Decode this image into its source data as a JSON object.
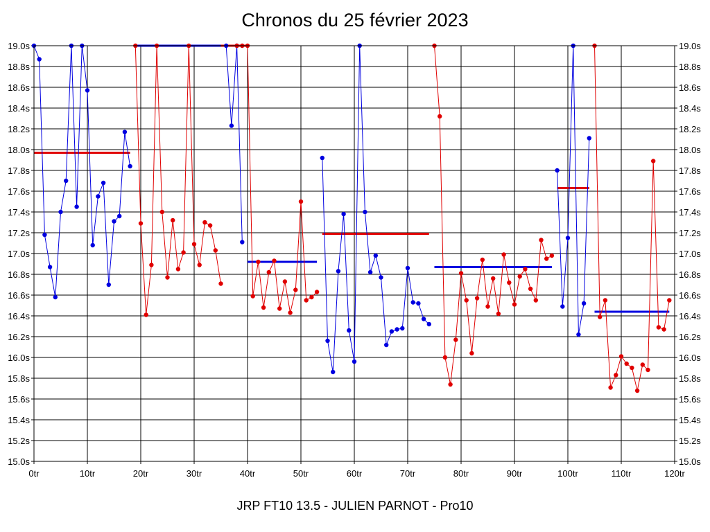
{
  "chart_data": {
    "type": "line",
    "title": "Chronos du 25 février 2023",
    "footer": "JRP FT10 13.5 - JULIEN PARNOT - Pro10",
    "xlim": [
      0,
      120
    ],
    "ylim": [
      15.0,
      19.0
    ],
    "grid": true,
    "x_ticks": [
      {
        "value": 0,
        "label": "0tr"
      },
      {
        "value": 10,
        "label": "10tr"
      },
      {
        "value": 20,
        "label": "20tr"
      },
      {
        "value": 30,
        "label": "30tr"
      },
      {
        "value": 40,
        "label": "40tr"
      },
      {
        "value": 50,
        "label": "50tr"
      },
      {
        "value": 60,
        "label": "60tr"
      },
      {
        "value": 70,
        "label": "70tr"
      },
      {
        "value": 80,
        "label": "80tr"
      },
      {
        "value": 90,
        "label": "90tr"
      },
      {
        "value": 100,
        "label": "100tr"
      },
      {
        "value": 110,
        "label": "110tr"
      },
      {
        "value": 120,
        "label": "120tr"
      }
    ],
    "y_ticks": [
      {
        "value": 19.0,
        "label": "19.0s"
      },
      {
        "value": 18.8,
        "label": "18.8s"
      },
      {
        "value": 18.6,
        "label": "18.6s"
      },
      {
        "value": 18.4,
        "label": "18.4s"
      },
      {
        "value": 18.2,
        "label": "18.2s"
      },
      {
        "value": 18.0,
        "label": "18.0s"
      },
      {
        "value": 17.8,
        "label": "17.8s"
      },
      {
        "value": 17.6,
        "label": "17.6s"
      },
      {
        "value": 17.4,
        "label": "17.4s"
      },
      {
        "value": 17.2,
        "label": "17.2s"
      },
      {
        "value": 17.0,
        "label": "17.0s"
      },
      {
        "value": 16.8,
        "label": "16.8s"
      },
      {
        "value": 16.6,
        "label": "16.6s"
      },
      {
        "value": 16.4,
        "label": "16.4s"
      },
      {
        "value": 16.2,
        "label": "16.2s"
      },
      {
        "value": 16.0,
        "label": "16.0s"
      },
      {
        "value": 15.8,
        "label": "15.8s"
      },
      {
        "value": 15.6,
        "label": "15.6s"
      },
      {
        "value": 15.4,
        "label": "15.4s"
      },
      {
        "value": 15.2,
        "label": "15.2s"
      },
      {
        "value": 15.0,
        "label": "15.0s"
      }
    ],
    "colors": {
      "blue": "#0000e0",
      "red": "#e00000"
    },
    "series": [
      {
        "color": "blue",
        "points": [
          [
            0,
            19.0
          ],
          [
            1,
            18.87
          ],
          [
            2,
            17.18
          ],
          [
            3,
            16.87
          ],
          [
            4,
            16.58
          ],
          [
            5,
            17.4
          ],
          [
            6,
            17.7
          ],
          [
            7,
            19.0
          ],
          [
            8,
            17.45
          ],
          [
            9,
            19.0
          ],
          [
            10,
            18.57
          ],
          [
            11,
            17.08
          ],
          [
            12,
            17.55
          ],
          [
            13,
            17.68
          ],
          [
            14,
            16.7
          ],
          [
            15,
            17.31
          ],
          [
            16,
            17.36
          ],
          [
            17,
            18.17
          ],
          [
            18,
            17.84
          ]
        ]
      },
      {
        "color": "red",
        "points": [
          [
            19,
            19.0
          ],
          [
            20,
            17.29
          ],
          [
            21,
            16.41
          ],
          [
            22,
            16.89
          ],
          [
            23,
            19.0
          ],
          [
            24,
            17.4
          ],
          [
            25,
            16.77
          ],
          [
            26,
            17.32
          ],
          [
            27,
            16.85
          ],
          [
            28,
            17.01
          ],
          [
            29,
            19.0
          ],
          [
            30,
            17.09
          ],
          [
            31,
            16.89
          ],
          [
            32,
            17.3
          ],
          [
            33,
            17.27
          ],
          [
            34,
            17.03
          ],
          [
            35,
            16.71
          ]
        ]
      },
      {
        "color": "blue",
        "points": [
          [
            36,
            19.0
          ],
          [
            37,
            18.23
          ],
          [
            38,
            19.0
          ],
          [
            39,
            17.11
          ]
        ]
      },
      {
        "color": "red",
        "points": [
          [
            38,
            19.0
          ],
          [
            39,
            19.0
          ],
          [
            40,
            19.0
          ],
          [
            41,
            16.59
          ],
          [
            42,
            16.92
          ],
          [
            43,
            16.48
          ],
          [
            44,
            16.82
          ],
          [
            45,
            16.93
          ],
          [
            46,
            16.47
          ],
          [
            47,
            16.73
          ],
          [
            48,
            16.43
          ],
          [
            49,
            16.65
          ],
          [
            50,
            17.5
          ],
          [
            51,
            16.55
          ],
          [
            52,
            16.58
          ],
          [
            53,
            16.63
          ]
        ]
      },
      {
        "color": "blue",
        "points": [
          [
            54,
            17.92
          ],
          [
            55,
            16.16
          ],
          [
            56,
            15.86
          ],
          [
            57,
            16.83
          ],
          [
            58,
            17.38
          ],
          [
            59,
            16.26
          ],
          [
            60,
            15.96
          ],
          [
            61,
            19.0
          ],
          [
            62,
            17.4
          ],
          [
            63,
            16.82
          ],
          [
            64,
            16.98
          ],
          [
            65,
            16.77
          ],
          [
            66,
            16.12
          ],
          [
            67,
            16.25
          ],
          [
            68,
            16.27
          ],
          [
            69,
            16.28
          ],
          [
            70,
            16.86
          ],
          [
            71,
            16.53
          ],
          [
            72,
            16.52
          ],
          [
            73,
            16.37
          ],
          [
            74,
            16.32
          ]
        ]
      },
      {
        "color": "red",
        "points": [
          [
            75,
            19.0
          ],
          [
            76,
            18.32
          ],
          [
            77,
            16.0
          ],
          [
            78,
            15.74
          ],
          [
            79,
            16.17
          ],
          [
            80,
            16.81
          ],
          [
            81,
            16.55
          ],
          [
            82,
            16.04
          ],
          [
            83,
            16.57
          ],
          [
            84,
            16.94
          ],
          [
            85,
            16.49
          ],
          [
            86,
            16.76
          ],
          [
            87,
            16.42
          ],
          [
            88,
            16.99
          ],
          [
            89,
            16.72
          ],
          [
            90,
            16.51
          ],
          [
            91,
            16.78
          ],
          [
            92,
            16.85
          ],
          [
            93,
            16.66
          ],
          [
            94,
            16.55
          ],
          [
            95,
            17.13
          ],
          [
            96,
            16.95
          ],
          [
            97,
            16.98
          ]
        ]
      },
      {
        "color": "blue",
        "points": [
          [
            98,
            17.8
          ],
          [
            99,
            16.49
          ],
          [
            100,
            17.15
          ],
          [
            101,
            19.0
          ],
          [
            102,
            16.22
          ],
          [
            103,
            16.52
          ],
          [
            104,
            18.11
          ]
        ]
      },
      {
        "color": "red",
        "points": [
          [
            105,
            19.0
          ],
          [
            106,
            16.39
          ],
          [
            107,
            16.55
          ],
          [
            108,
            15.71
          ],
          [
            109,
            15.83
          ],
          [
            110,
            16.01
          ],
          [
            111,
            15.94
          ],
          [
            112,
            15.9
          ],
          [
            113,
            15.68
          ],
          [
            114,
            15.93
          ],
          [
            115,
            15.88
          ],
          [
            116,
            17.89
          ],
          [
            117,
            16.29
          ],
          [
            118,
            16.27
          ],
          [
            119,
            16.55
          ]
        ]
      }
    ],
    "averages": [
      {
        "color": "red",
        "x": [
          0,
          18
        ],
        "y": 17.97
      },
      {
        "color": "blue",
        "x": [
          19,
          35
        ],
        "y": 19.0
      },
      {
        "color": "red",
        "x": [
          35,
          40
        ],
        "y": 19.0
      },
      {
        "color": "blue",
        "x": [
          40,
          53
        ],
        "y": 16.92
      },
      {
        "color": "red",
        "x": [
          54,
          74
        ],
        "y": 17.19
      },
      {
        "color": "blue",
        "x": [
          75,
          97
        ],
        "y": 16.87
      },
      {
        "color": "red",
        "x": [
          98,
          104
        ],
        "y": 17.63
      },
      {
        "color": "blue",
        "x": [
          105,
          119
        ],
        "y": 16.44
      }
    ]
  }
}
